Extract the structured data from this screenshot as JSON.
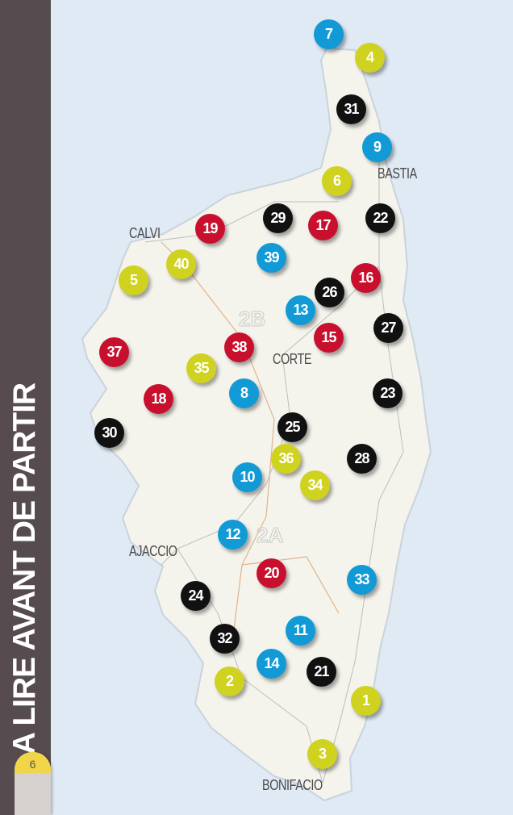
{
  "sidebar": {
    "title": "A LIRE AVANT DE PARTIR",
    "page_number": "6"
  },
  "colors": {
    "sea": "#dfeaf5",
    "land": "#f4f3ec",
    "sidebar": "#564c50",
    "red": "#c8102e",
    "yellow": "#cfd21f",
    "blue": "#119ad6",
    "black": "#111111",
    "page_tab": "#f1d548"
  },
  "towns": [
    "CALVI",
    "BASTIA",
    "CORTE",
    "AJACCIO",
    "BONIFACIO"
  ],
  "departments": [
    "2B",
    "2A"
  ],
  "markers": [
    {
      "n": "7",
      "color": "#119ad6"
    },
    {
      "n": "4",
      "color": "#cfd21f"
    },
    {
      "n": "31",
      "color": "#111111"
    },
    {
      "n": "9",
      "color": "#119ad6"
    },
    {
      "n": "6",
      "color": "#cfd21f"
    },
    {
      "n": "22",
      "color": "#111111"
    },
    {
      "n": "29",
      "color": "#111111"
    },
    {
      "n": "17",
      "color": "#c8102e"
    },
    {
      "n": "19",
      "color": "#c8102e"
    },
    {
      "n": "40",
      "color": "#cfd21f"
    },
    {
      "n": "39",
      "color": "#119ad6"
    },
    {
      "n": "5",
      "color": "#cfd21f"
    },
    {
      "n": "16",
      "color": "#c8102e"
    },
    {
      "n": "26",
      "color": "#111111"
    },
    {
      "n": "13",
      "color": "#119ad6"
    },
    {
      "n": "27",
      "color": "#111111"
    },
    {
      "n": "15",
      "color": "#c8102e"
    },
    {
      "n": "37",
      "color": "#c8102e"
    },
    {
      "n": "38",
      "color": "#c8102e"
    },
    {
      "n": "35",
      "color": "#cfd21f"
    },
    {
      "n": "8",
      "color": "#119ad6"
    },
    {
      "n": "18",
      "color": "#c8102e"
    },
    {
      "n": "23",
      "color": "#111111"
    },
    {
      "n": "30",
      "color": "#111111"
    },
    {
      "n": "25",
      "color": "#111111"
    },
    {
      "n": "36",
      "color": "#cfd21f"
    },
    {
      "n": "28",
      "color": "#111111"
    },
    {
      "n": "10",
      "color": "#119ad6"
    },
    {
      "n": "34",
      "color": "#cfd21f"
    },
    {
      "n": "12",
      "color": "#119ad6"
    },
    {
      "n": "20",
      "color": "#c8102e"
    },
    {
      "n": "33",
      "color": "#119ad6"
    },
    {
      "n": "24",
      "color": "#111111"
    },
    {
      "n": "11",
      "color": "#119ad6"
    },
    {
      "n": "32",
      "color": "#111111"
    },
    {
      "n": "14",
      "color": "#119ad6"
    },
    {
      "n": "21",
      "color": "#111111"
    },
    {
      "n": "2",
      "color": "#cfd21f"
    },
    {
      "n": "1",
      "color": "#cfd21f"
    },
    {
      "n": "3",
      "color": "#cfd21f"
    }
  ]
}
